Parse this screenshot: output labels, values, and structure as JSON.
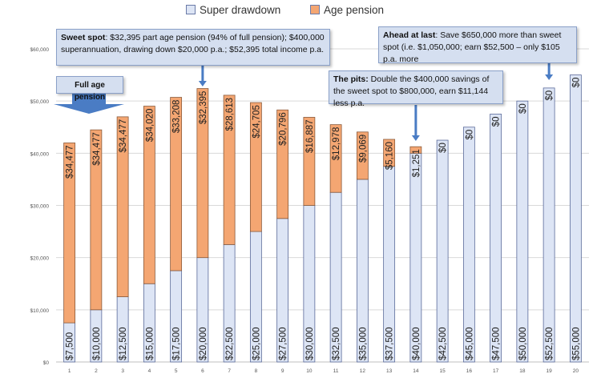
{
  "legend": {
    "super_label": "Super drawdown",
    "pension_label": "Age pension"
  },
  "colors": {
    "super_fill": "#dde5f5",
    "super_stroke": "#5a6a9a",
    "pension_fill": "#f4a672",
    "pension_stroke": "#8a5a3a",
    "callout_bg": "#d5dff0",
    "arrow": "#4a7cc4"
  },
  "callouts": {
    "sweet_spot": {
      "title": "Sweet spot",
      "text": ": $32,395 part age pension (94% of full pension);  $400,000 superannuation,  drawing down $20,000 p.a.; $52,395 total income p.a."
    },
    "ahead": {
      "title": "Ahead at last",
      "text": ": Save $650,000 more than sweet spot (i.e. $1,050,000;  earn  $52,500 – only $105 p.a. more"
    },
    "pits": {
      "title": "The pits:",
      "text": " Double the $400,000 savings of the sweet spot to $800,000, earn $11,144 less p.a."
    },
    "full_pension": {
      "text": "Full age pension"
    }
  },
  "chart_data": {
    "type": "bar",
    "stacked": true,
    "categories": [
      "1",
      "2",
      "3",
      "4",
      "5",
      "6",
      "7",
      "8",
      "9",
      "10",
      "11",
      "12",
      "13",
      "14",
      "15",
      "16",
      "17",
      "18",
      "19",
      "20"
    ],
    "series": [
      {
        "name": "Super drawdown",
        "values": [
          7500,
          10000,
          12500,
          15000,
          17500,
          20000,
          22500,
          25000,
          27500,
          30000,
          32500,
          35000,
          37500,
          40000,
          42500,
          45000,
          47500,
          50000,
          52500,
          55000
        ],
        "labels": [
          "$7,500",
          "$10,000",
          "$12,500",
          "$15,000",
          "$17,500",
          "$20,000",
          "$22,500",
          "$25,000",
          "$27,500",
          "$30,000",
          "$32,500",
          "$35,000",
          "$37,500",
          "$40,000",
          "$42,500",
          "$45,000",
          "$47,500",
          "$50,000",
          "$52,500",
          "$55,000"
        ]
      },
      {
        "name": "Age pension",
        "values": [
          34477,
          34477,
          34477,
          34020,
          33208,
          32395,
          28613,
          24705,
          20796,
          16887,
          12978,
          9069,
          5160,
          1251,
          0,
          0,
          0,
          0,
          0,
          0
        ],
        "labels": [
          "$34,477",
          "$34,477",
          "$34,477",
          "$34,020",
          "$33,208",
          "$32,395",
          "$28,613",
          "$24,705",
          "$20,796",
          "$16,887",
          "$12,978",
          "$9,069",
          "$5,160",
          "$1,251",
          "$0",
          "$0",
          "$0",
          "$0",
          "$0",
          "$0"
        ]
      }
    ],
    "ylim": [
      0,
      60000
    ],
    "yticks": [
      0,
      10000,
      20000,
      30000,
      40000,
      50000,
      60000
    ],
    "ytick_labels": [
      "$0",
      "$10,000",
      "$20,000",
      "$30,000",
      "$40,000",
      "$50,000",
      "$60,000"
    ],
    "legend_position": "top",
    "grid": true
  }
}
